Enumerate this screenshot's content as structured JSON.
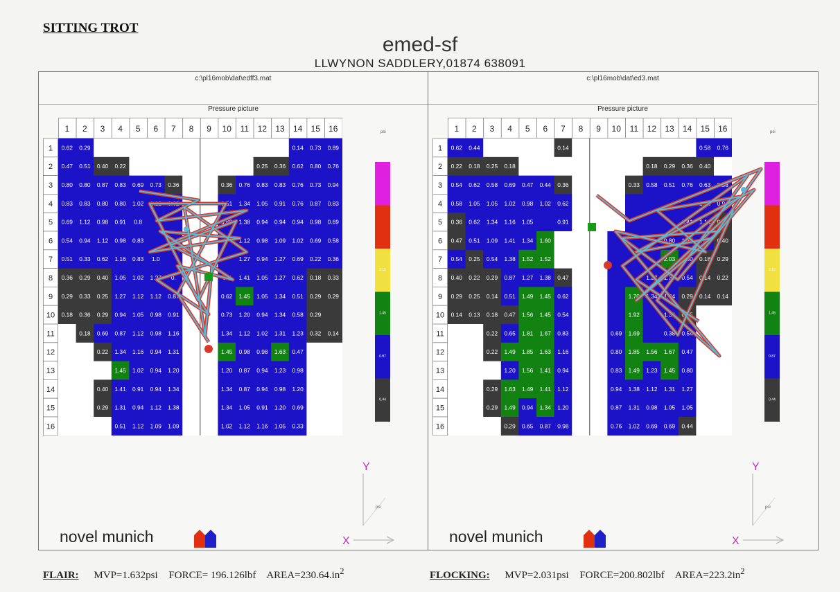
{
  "heading": "SITTING TROT",
  "device": "emed-sf",
  "subtitle": "LLWYNON SADDLERY,01874 638091",
  "colors": {
    "pink": "#e020e0",
    "red": "#e03010",
    "yellow": "#f0e040",
    "green": "#128212",
    "blue": "#1c12c8",
    "dark": "#3a3a3a",
    "white": "#ffffff",
    "trace_outer": "#d83a2a",
    "trace_inner": "#5ab8d8"
  },
  "legend_levels": [
    "pink",
    "red",
    "yellow",
    "green",
    "blue",
    "dark"
  ],
  "legend_labels": [
    "",
    "",
    "2.15",
    "1.45",
    "0.87",
    "0.44"
  ],
  "legend_unit": "psi",
  "panels": [
    {
      "file": "c:\\pl16mob\\dat\\edff3.mat",
      "plot_title": "Pressure picture",
      "brand": "novel munich",
      "y_label": "Y",
      "x_label": "X",
      "footer": {
        "name": "FLAIR:",
        "mvp": "MVP=1.632psi",
        "force": "FORCE= 196.126lbf",
        "area": "AREA=230.64.in",
        "area_sup": "2"
      }
    },
    {
      "file": "c:\\pl16mob\\dat\\ed3.mat",
      "plot_title": "Pressure picture",
      "brand": "novel munich",
      "y_label": "Y",
      "x_label": "X",
      "footer": {
        "name": "FLOCKING:",
        "mvp": "MVP=2.031psi",
        "force": "FORCE=200.802lbf",
        "area": "AREA=223.2in",
        "area_sup": "2"
      }
    }
  ],
  "chart_data": [
    {
      "type": "heatmap",
      "title": "Pressure picture",
      "columns": [
        "1",
        "2",
        "3",
        "4",
        "5",
        "6",
        "7",
        "8",
        "9",
        "10",
        "11",
        "12",
        "13",
        "14",
        "15",
        "16"
      ],
      "rows": [
        "1",
        "2",
        "3",
        "4",
        "5",
        "6",
        "7",
        "8",
        "9",
        "10",
        "11",
        "12",
        "13",
        "14",
        "15",
        "16"
      ],
      "unit": "psi",
      "values": [
        [
          "0.62",
          "0.29",
          "",
          "",
          "",
          "",
          "",
          "",
          "",
          "",
          "",
          "",
          "",
          "0.14",
          "0.73",
          "0.89"
        ],
        [
          "0.47",
          "0.51",
          "0.40",
          "0.22",
          "",
          "",
          "",
          "",
          "",
          "",
          "",
          "0.25",
          "0.36",
          "0.62",
          "0.80",
          "0.76"
        ],
        [
          "0.80",
          "0.80",
          "0.87",
          "0.83",
          "0.69",
          "0.73",
          "0.36",
          "",
          "",
          "0.36",
          "0.76",
          "0.83",
          "0.83",
          "0.76",
          "0.73",
          "0.94"
        ],
        [
          "0.83",
          "0.83",
          "0.80",
          "0.80",
          "1.02",
          "1.12",
          "0.62",
          "",
          "",
          "0.51",
          "1.34",
          "1.05",
          "0.91",
          "0.76",
          "0.87",
          "0.83"
        ],
        [
          "0.69",
          "1.12",
          "0.98",
          "0.91",
          "0.8",
          "",
          "",
          "",
          "",
          "0.69",
          "1.38",
          "0.94",
          "0.94",
          "0.94",
          "0.98",
          "0.69"
        ],
        [
          "0.54",
          "0.94",
          "1.12",
          "0.98",
          "0.83",
          "",
          "",
          "",
          "",
          "",
          "1.12",
          "0.98",
          "1.09",
          "1.02",
          "0.69",
          "0.58"
        ],
        [
          "0.51",
          "0.33",
          "0.62",
          "1.16",
          "0.83",
          "1.0",
          "",
          "",
          "",
          "",
          "1.27",
          "0.94",
          "1.27",
          "0.69",
          "0.22",
          "0.36"
        ],
        [
          "0.36",
          "0.29",
          "0.40",
          "1.05",
          "1.02",
          "1.27",
          "0.",
          "",
          "",
          "0.7",
          "1.41",
          "1.05",
          "1.27",
          "0.62",
          "0.18",
          "0.33"
        ],
        [
          "0.29",
          "0.33",
          "0.25",
          "1.27",
          "1.12",
          "1.12",
          "0.87",
          "",
          "",
          "0.62",
          "1.45",
          "1.05",
          "1.34",
          "0.51",
          "0.29",
          "0.29"
        ],
        [
          "0.18",
          "0.36",
          "0.29",
          "0.94",
          "1.05",
          "0.98",
          "0.91",
          "",
          "",
          "0.73",
          "1.20",
          "0.94",
          "1.34",
          "0.58",
          "0.29",
          ""
        ],
        [
          "",
          "0.18",
          "0.69",
          "0.87",
          "1.12",
          "0.98",
          "1.16",
          "",
          "",
          "1.34",
          "1.12",
          "1.02",
          "1.31",
          "1.23",
          "0.32",
          "0.14"
        ],
        [
          "",
          "",
          "0.22",
          "1.34",
          "1.16",
          "0.94",
          "1.31",
          "",
          "",
          "1.45",
          "0.98",
          "0.98",
          "1.63",
          "0.47",
          "",
          ""
        ],
        [
          "",
          "",
          "",
          "1.45",
          "1.02",
          "0.94",
          "1.20",
          "",
          "",
          "1.20",
          "0.87",
          "0.94",
          "1.23",
          "0.98",
          "",
          ""
        ],
        [
          "",
          "",
          "0.40",
          "1.41",
          "0.91",
          "0.94",
          "1.34",
          "",
          "",
          "1.34",
          "0.87",
          "0.94",
          "0.98",
          "1.20",
          "",
          ""
        ],
        [
          "",
          "",
          "0.29",
          "1.31",
          "0.94",
          "1.12",
          "1.38",
          "",
          "",
          "1.34",
          "1.05",
          "0.91",
          "1.20",
          "0.69",
          "",
          ""
        ],
        [
          "",
          "",
          "",
          "0.51",
          "1.12",
          "1.09",
          "1.09",
          "",
          "",
          "1.02",
          "1.12",
          "1.16",
          "1.05",
          "0.33",
          "",
          ""
        ]
      ],
      "levels": [
        "BBWWWWWWWWWWWBBB",
        "BBDDWWWWWWWDDBBB",
        "BBBBBBDWWDBBBBBB",
        "BBBBBBBWWBBBBBBB",
        "BBBBBBBWWBBBBBBB",
        "BBBBBBBWWBBBBBBB",
        "BBBBBBBWWBBBBBBB",
        "DDDBBBBWWBBBBBDD",
        "DDDBBBBWWBGBBBDD",
        "DDDBBBBWWBBBBBDD",
        "WDBBBBBWWBBBBBDD",
        "WWDBBBBWWGBBGBWW",
        "WWWGBBBWWBBBBBWW",
        "WWDBBBBWWBBBBBWW",
        "WWDBBBBWWBBBBBWW",
        "WWWBBBBWWBBBBBWW"
      ]
    },
    {
      "type": "heatmap",
      "title": "Pressure picture",
      "columns": [
        "1",
        "2",
        "3",
        "4",
        "5",
        "6",
        "7",
        "8",
        "9",
        "10",
        "11",
        "12",
        "13",
        "14",
        "15",
        "16"
      ],
      "rows": [
        "1",
        "2",
        "3",
        "4",
        "5",
        "6",
        "7",
        "8",
        "9",
        "10",
        "11",
        "12",
        "13",
        "14",
        "15",
        "16"
      ],
      "unit": "psi",
      "values": [
        [
          "0.62",
          "0.44",
          "",
          "",
          "",
          "",
          "0.14",
          "",
          "",
          "",
          "",
          "",
          "",
          "",
          "0.58",
          "0.76"
        ],
        [
          "0.22",
          "0.18",
          "0.25",
          "0.18",
          "",
          "",
          "",
          "",
          "",
          "",
          "",
          "0.18",
          "0.29",
          "0.36",
          "0.40",
          ""
        ],
        [
          "0.54",
          "0.62",
          "0.58",
          "0.69",
          "0.47",
          "0.44",
          "0.36",
          "",
          "",
          "",
          "0.33",
          "0.58",
          "0.51",
          "0.76",
          "0.63",
          "0.98"
        ],
        [
          "0.58",
          "1.05",
          "1.05",
          "1.02",
          "0.98",
          "1.02",
          "0.62",
          "",
          "",
          "",
          "",
          "",
          "",
          "",
          "1.23",
          "0.91"
        ],
        [
          "0.36",
          "0.62",
          "1.34",
          "1.16",
          "1.05",
          "",
          "0.91",
          "",
          "",
          "",
          "",
          "",
          "",
          "1.41",
          "1.16",
          "0.65"
        ],
        [
          "0.47",
          "0.51",
          "1.09",
          "1.41",
          "1.34",
          "1.60",
          "",
          "",
          "",
          "",
          "",
          "",
          "0.80",
          "1.27",
          "0.69",
          "0.40"
        ],
        [
          "0.54",
          "0.25",
          "0.54",
          "1.38",
          "1.52",
          "1.52",
          "",
          "",
          "",
          "",
          "",
          "",
          "2.03",
          "0.80",
          "0.18",
          "0.29"
        ],
        [
          "0.40",
          "0.22",
          "0.29",
          "0.87",
          "1.27",
          "1.38",
          "0.47",
          "",
          "",
          "",
          "",
          "1.27",
          "1.38",
          "0.54",
          "0.14",
          "0.22"
        ],
        [
          "0.29",
          "0.25",
          "0.14",
          "0.51",
          "1.49",
          "1.45",
          "0.62",
          "",
          "",
          "",
          "1.70",
          "1.34",
          "1.34",
          "0.29",
          "0.14",
          "0.14"
        ],
        [
          "0.14",
          "0.13",
          "0.18",
          "0.47",
          "1.56",
          "1.45",
          "0.54",
          "",
          "",
          "",
          "1.92",
          "",
          "1.34",
          "0.25",
          "",
          ""
        ],
        [
          "",
          "",
          "0.22",
          "0.65",
          "1.81",
          "1.67",
          "0.83",
          "",
          "",
          "0.69",
          "1.69",
          "",
          "0.38",
          "0.54",
          "",
          ""
        ],
        [
          "",
          "",
          "0.22",
          "1.49",
          "1.85",
          "1.63",
          "1.16",
          "",
          "",
          "0.80",
          "1.85",
          "1.56",
          "1.67",
          "0.47",
          "",
          ""
        ],
        [
          "",
          "",
          "",
          "1.20",
          "1.56",
          "1.41",
          "0.94",
          "",
          "",
          "0.83",
          "1.49",
          "1.23",
          "1.45",
          "0.80",
          "",
          ""
        ],
        [
          "",
          "",
          "0.29",
          "1.63",
          "1.49",
          "1.41",
          "1.12",
          "",
          "",
          "0.94",
          "1.38",
          "1.12",
          "1.31",
          "1.27",
          "",
          ""
        ],
        [
          "",
          "",
          "0.29",
          "1.49",
          "0.94",
          "1.34",
          "1.20",
          "",
          "",
          "0.87",
          "1.31",
          "0.98",
          "1.05",
          "1.05",
          "",
          ""
        ],
        [
          "",
          "",
          "",
          "0.29",
          "0.65",
          "0.87",
          "0.98",
          "",
          "",
          "0.76",
          "1.02",
          "0.69",
          "0.69",
          "0.44",
          "",
          ""
        ]
      ],
      "levels": [
        "BBWWWWDWWWWWWWBB",
        "DDDDWWWWWWWDDDDW",
        "BBBBBBDWWWDBBBBB",
        "BBBBBBBWWWBBBBBB",
        "DBBBBBBWWWBBBBBD",
        "DBBBBGWWWBBBBBBD",
        "BDBBGGWWWBBBGBDD",
        "DDDBBBDWWBBBBBDD",
        "DDDBGGBWWBGBBDDD",
        "DDDDGGBWWBGBBDWW",
        "WWDBGGBWWBGBBBWW",
        "WWDGGGBWWBGGGBWW",
        "WWWBGGBWWBGBGBWW",
        "WWDGGGBWWBBBBBWW",
        "WWDGBGBWWBBBBBWW",
        "WWWDBBBWWBBBBDWW"
      ]
    }
  ]
}
